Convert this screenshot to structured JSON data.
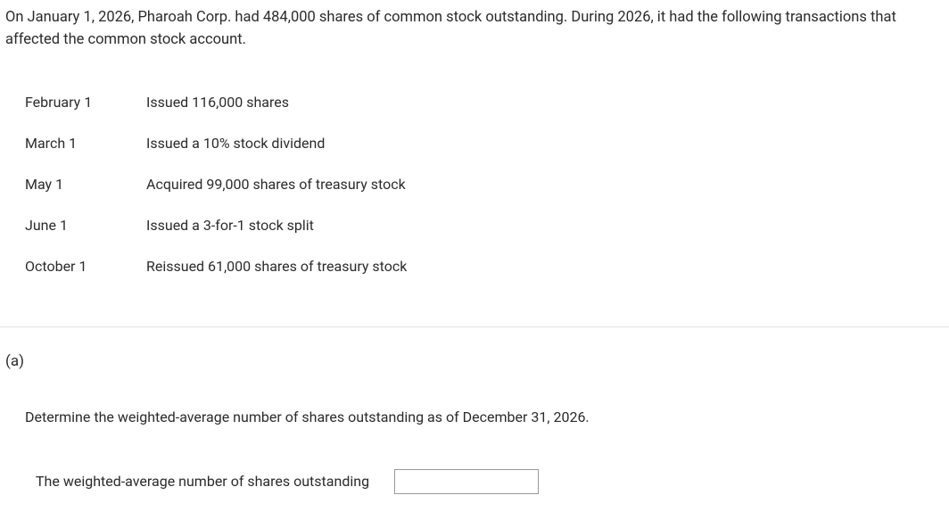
{
  "intro": "On January 1, 2026, Pharoah Corp. had 484,000 shares of common stock outstanding. During 2026, it had the following transactions that affected the common stock account.",
  "transactions": [
    {
      "date": "February 1",
      "desc": "Issued 116,000 shares"
    },
    {
      "date": "March 1",
      "desc": "Issued a 10% stock dividend"
    },
    {
      "date": "May 1",
      "desc": "Acquired 99,000 shares of treasury stock"
    },
    {
      "date": "June 1",
      "desc": "Issued a 3-for-1 stock split"
    },
    {
      "date": "October 1",
      "desc": "Reissued 61,000 shares of treasury stock"
    }
  ],
  "part_label": "(a)",
  "question": "Determine the weighted-average number of shares outstanding as of December 31, 2026.",
  "answer_label": "The weighted-average number of shares outstanding",
  "answer_value": ""
}
